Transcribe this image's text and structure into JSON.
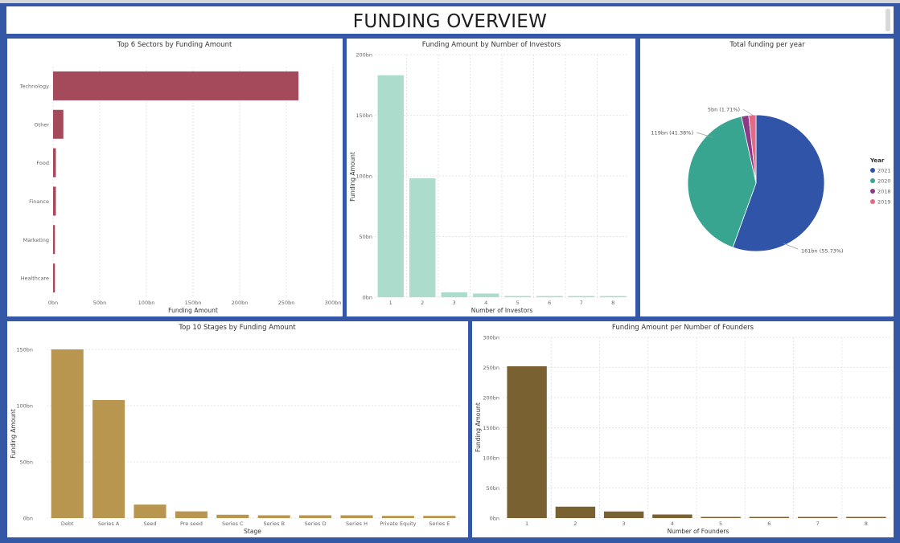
{
  "page": {
    "title": "FUNDING OVERVIEW"
  },
  "chart_data": [
    {
      "id": "sectors",
      "type": "bar",
      "orientation": "horizontal",
      "title": "Top 6 Sectors by Funding Amount",
      "xlabel": "Funding Amount",
      "ylabel": "",
      "categories": [
        "Technology",
        "Other",
        "Food",
        "Finance",
        "Marketing",
        "Healthcare"
      ],
      "values": [
        263,
        11,
        3,
        3,
        2,
        2
      ],
      "xlim": [
        0,
        300
      ],
      "ticks": [
        "0bn",
        "50bn",
        "100bn",
        "150bn",
        "200bn",
        "250bn",
        "300bn"
      ],
      "color": "#a44a5a",
      "grid": true
    },
    {
      "id": "investors",
      "type": "bar",
      "title": "Funding Amount by Number of Investors",
      "xlabel": "Number of Investors",
      "ylabel": "Funding Amount",
      "categories": [
        "1",
        "2",
        "3",
        "4",
        "5",
        "6",
        "7",
        "8"
      ],
      "values": [
        183,
        98,
        4,
        3,
        1,
        0.5,
        0.5,
        0.5
      ],
      "ylim": [
        0,
        200
      ],
      "ticks": [
        "0bn",
        "50bn",
        "100bn",
        "150bn",
        "200bn"
      ],
      "color": "#acdccb",
      "grid": true
    },
    {
      "id": "years",
      "type": "pie",
      "title": "Total funding per year",
      "legend_title": "Year",
      "legend_position": "right",
      "slices": [
        {
          "name": "2021",
          "value": 161,
          "label": "161bn (55.73%)",
          "color": "#3054a8"
        },
        {
          "name": "2020",
          "value": 119,
          "label": "119bn (41.38%)",
          "color": "#37a58f"
        },
        {
          "name": "2018",
          "value": 5,
          "label": "",
          "color": "#8a3a86"
        },
        {
          "name": "2019",
          "value": 5,
          "label": "5bn (1.71%)",
          "color": "#e06b86"
        }
      ]
    },
    {
      "id": "stages",
      "type": "bar",
      "title": "Top 10 Stages by Funding Amount",
      "xlabel": "Stage",
      "ylabel": "Funding Amount",
      "categories": [
        "Debt",
        "Series A",
        "Seed",
        "Pre seed",
        "Series C",
        "Series B",
        "Series D",
        "Series H",
        "Private Equity",
        "Series E"
      ],
      "values": [
        150,
        105,
        12,
        6,
        3,
        2.5,
        2.5,
        2.5,
        2,
        2
      ],
      "ylim": [
        0,
        150
      ],
      "ticks": [
        "0bn",
        "50bn",
        "100bn",
        "150bn"
      ],
      "color": "#b8964f",
      "grid": true
    },
    {
      "id": "founders",
      "type": "bar",
      "title": "Funding Amount per Number of Founders",
      "xlabel": "Number of Founders",
      "ylabel": "Funding Amount",
      "categories": [
        "1",
        "2",
        "3",
        "4",
        "5",
        "6",
        "7",
        "8"
      ],
      "values": [
        252,
        19,
        11,
        6,
        1.5,
        1,
        1,
        1
      ],
      "ylim": [
        0,
        300
      ],
      "ticks": [
        "0bn",
        "50bn",
        "100bn",
        "150bn",
        "200bn",
        "250bn",
        "300bn"
      ],
      "color": "#7a6131",
      "grid": true
    }
  ]
}
